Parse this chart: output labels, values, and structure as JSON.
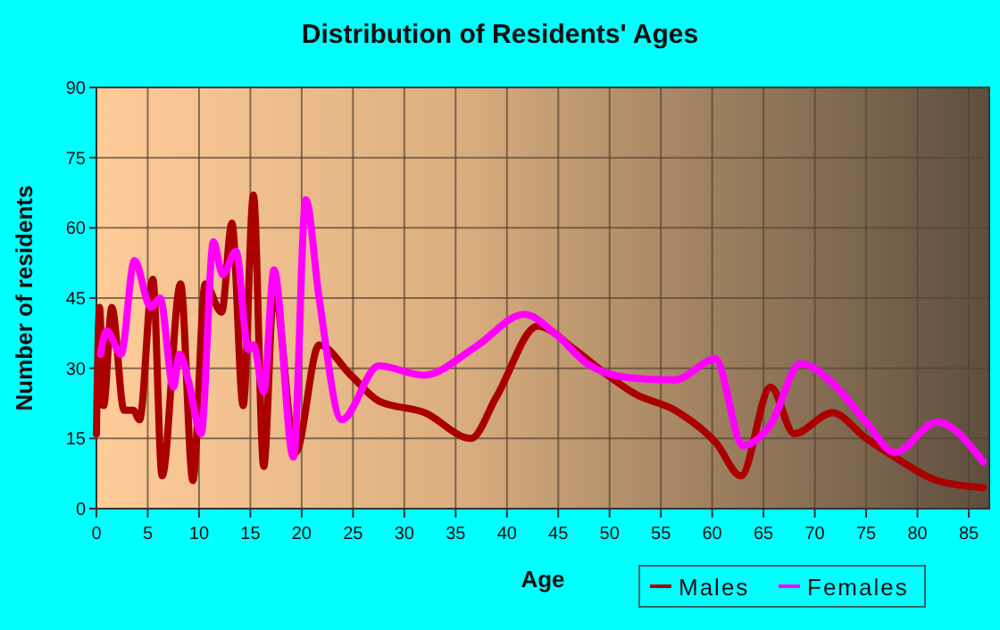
{
  "chart_data": {
    "type": "line",
    "title": "Distribution of Residents' Ages",
    "xlabel": "Age",
    "ylabel": "Number of residents",
    "xlim": [
      0,
      87
    ],
    "xticks": [
      0,
      5,
      10,
      15,
      20,
      25,
      30,
      35,
      40,
      45,
      50,
      55,
      60,
      65,
      70,
      75,
      80,
      85
    ],
    "ylim": [
      0,
      90
    ],
    "yticks": [
      0,
      15,
      30,
      45,
      60,
      75,
      90
    ],
    "grid": true,
    "legend": "bottom right",
    "marker": "none",
    "line_style": "solid",
    "series": [
      {
        "name": "Males",
        "color": "#aa0000",
        "x": [
          0,
          0.3,
          0.7,
          1.5,
          2.7,
          3.6,
          4.2,
          5.5,
          6.4,
          8.2,
          9.4,
          10.6,
          12.2,
          13.2,
          14.3,
          15.3,
          16.3,
          17.3,
          19.4,
          21.7,
          24.8,
          27.5,
          32,
          36.5,
          39,
          43,
          46.6,
          49.5,
          52.5,
          56.4,
          60.4,
          62.8,
          65.7,
          68,
          71.7,
          75,
          77.8,
          81.9,
          86.4
        ],
        "values": [
          16,
          43,
          22,
          43,
          21,
          21,
          19,
          49,
          7,
          48,
          6,
          48,
          42,
          61,
          22,
          67,
          9,
          47,
          12,
          35,
          28.5,
          23,
          20.5,
          15,
          24,
          39,
          34,
          29,
          24.5,
          21,
          14,
          7,
          26,
          16,
          20.5,
          15,
          11,
          6,
          4.5
        ]
      },
      {
        "name": "Females",
        "color": "#ff00ff",
        "x": [
          0.4,
          1,
          2.4,
          3.7,
          5.3,
          6.2,
          7.5,
          8.1,
          9,
          10.2,
          11.4,
          12.3,
          13.6,
          14.8,
          15.3,
          16.3,
          17.3,
          19.2,
          20.4,
          21.7,
          23.9,
          27.5,
          31.9,
          36.9,
          41.7,
          44.9,
          47.8,
          51.8,
          56.4,
          60.3,
          63,
          65.7,
          68.6,
          72.1,
          75,
          77.8,
          81.9,
          86.4
        ],
        "values": [
          33,
          38,
          33,
          53,
          43,
          45,
          26,
          33,
          27,
          16,
          57,
          50,
          55,
          34,
          35,
          25,
          51,
          11,
          66,
          45,
          19,
          30.5,
          28.5,
          34.5,
          41.5,
          37,
          31,
          28,
          27.5,
          32,
          13.5,
          18,
          31,
          26,
          18.5,
          12,
          18.5,
          10
        ]
      }
    ]
  }
}
